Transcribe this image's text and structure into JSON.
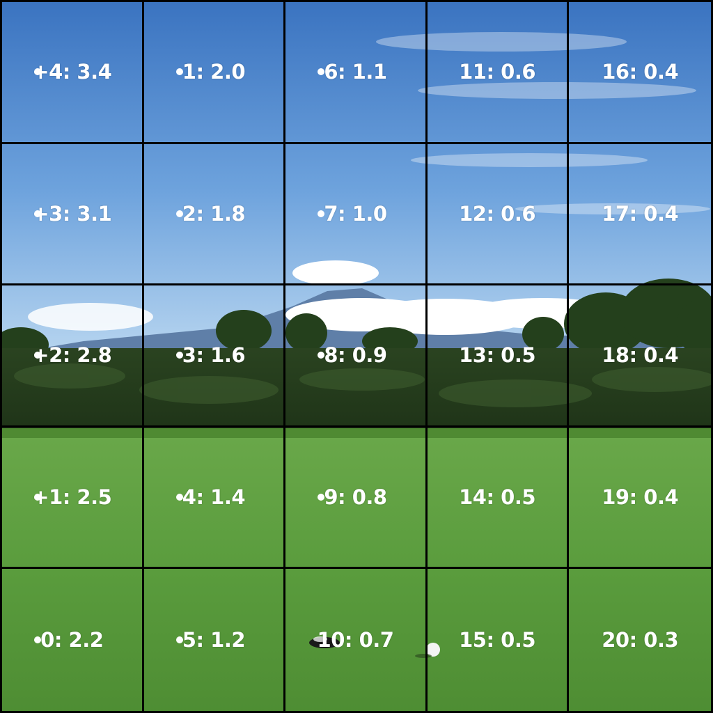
{
  "grid": {
    "rows": [
      [
        {
          "label": "+4: 3.4",
          "dot": true
        },
        {
          "label": "1: 2.0",
          "dot": true
        },
        {
          "label": "6: 1.1",
          "dot": true
        },
        {
          "label": "11: 0.6",
          "dot": false
        },
        {
          "label": "16: 0.4",
          "dot": false
        }
      ],
      [
        {
          "label": "+3: 3.1",
          "dot": true
        },
        {
          "label": "2: 1.8",
          "dot": true
        },
        {
          "label": "7: 1.0",
          "dot": true
        },
        {
          "label": "12: 0.6",
          "dot": false
        },
        {
          "label": "17: 0.4",
          "dot": false
        }
      ],
      [
        {
          "label": "+2: 2.8",
          "dot": true
        },
        {
          "label": "3: 1.6",
          "dot": true
        },
        {
          "label": "8: 0.9",
          "dot": true
        },
        {
          "label": "13: 0.5",
          "dot": false
        },
        {
          "label": "18: 0.4",
          "dot": false
        }
      ],
      [
        {
          "label": "+1: 2.5",
          "dot": true
        },
        {
          "label": "4: 1.4",
          "dot": true
        },
        {
          "label": "9: 0.8",
          "dot": true
        },
        {
          "label": "14: 0.5",
          "dot": false
        },
        {
          "label": "19: 0.4",
          "dot": false
        }
      ],
      [
        {
          "label": "0: 2.2",
          "dot": true
        },
        {
          "label": "5: 1.2",
          "dot": true
        },
        {
          "label": "10: 0.7",
          "dot": false
        },
        {
          "label": "15: 0.5",
          "dot": false
        },
        {
          "label": "20: 0.3",
          "dot": false
        }
      ]
    ]
  },
  "colors": {
    "sky_top": "#3f79c4",
    "sky_bottom": "#a9cdef",
    "cloud": "#ffffff",
    "mountain": "#5b7da6",
    "hedge": "#2f4a25",
    "grass": "#5a9a3c",
    "grid_line": "#000000",
    "label": "#ffffff"
  }
}
